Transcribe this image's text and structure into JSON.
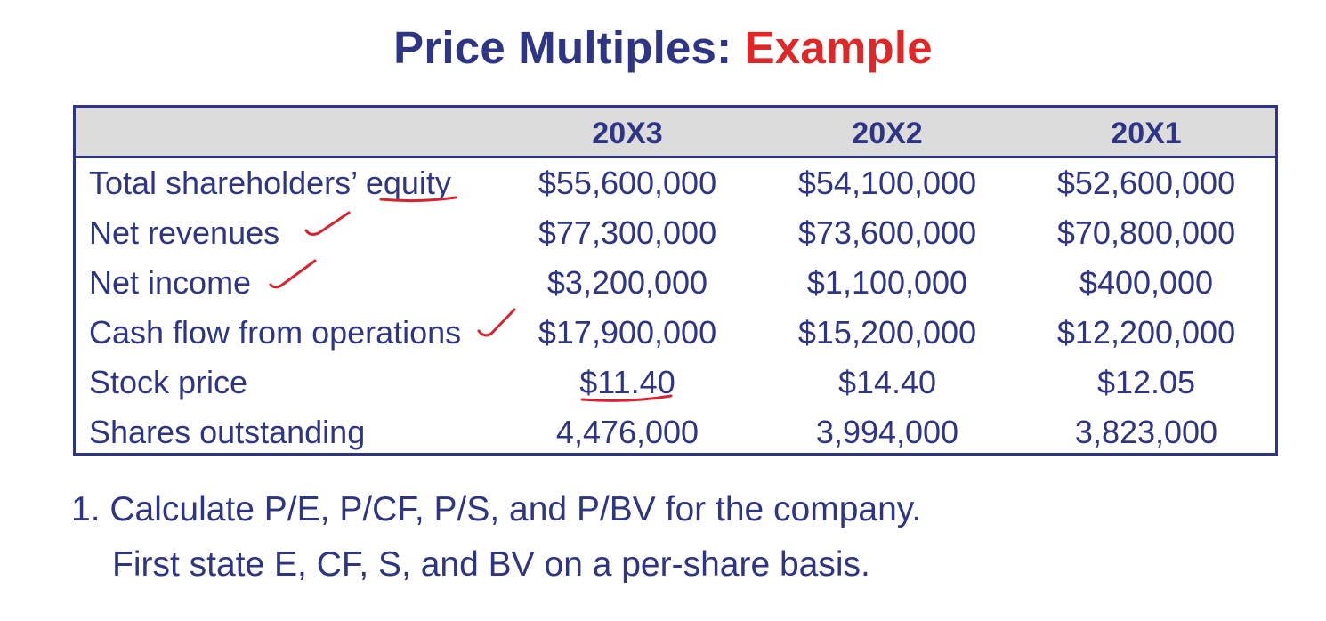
{
  "title": {
    "main": "Price Multiples: ",
    "accent": "Example"
  },
  "colors": {
    "navy": "#2e3585",
    "red": "#e02727",
    "header_fill": "#dcdcdc",
    "annotation_ink": "#d8232f"
  },
  "table": {
    "columns": [
      "20X3",
      "20X2",
      "20X1"
    ],
    "rows": [
      {
        "label": "Total shareholders’ equity",
        "values": [
          "$55,600,000",
          "$54,100,000",
          "$52,600,000"
        ]
      },
      {
        "label": "Net revenues",
        "values": [
          "$77,300,000",
          "$73,600,000",
          "$70,800,000"
        ]
      },
      {
        "label": "Net income",
        "values": [
          "$3,200,000",
          "$1,100,000",
          "$400,000"
        ]
      },
      {
        "label": "Cash flow from operations",
        "values": [
          "$17,900,000",
          "$15,200,000",
          "$12,200,000"
        ]
      },
      {
        "label": "Stock price",
        "values": [
          "$11.40",
          "$14.40",
          "$12.05"
        ]
      },
      {
        "label": "Shares outstanding",
        "values": [
          "4,476,000",
          "3,994,000",
          "3,823,000"
        ]
      }
    ]
  },
  "question": {
    "line1": "1. Calculate P/E, P/CF, P/S, and P/BV for the company.",
    "line2": "First state E, CF, S, and BV on a per-share basis."
  },
  "annotations": {
    "underlined_items": [
      "equity",
      "$11.40"
    ],
    "checkmarks_on_rows": [
      "Net revenues",
      "Net income",
      "Cash flow from operations"
    ]
  }
}
